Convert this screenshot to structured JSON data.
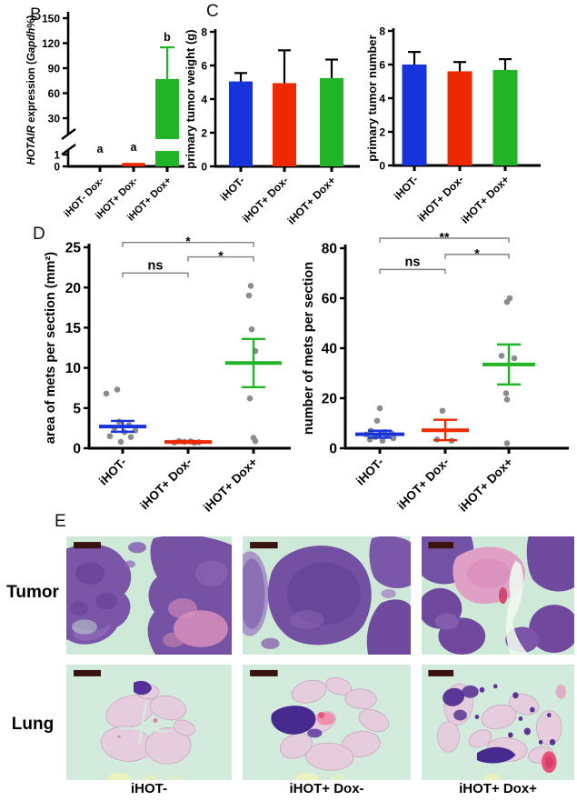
{
  "figure": {
    "panel_letters": {
      "b": "B",
      "c": "C",
      "d": "D",
      "e": "E"
    }
  },
  "colors": {
    "blue": "#1733db",
    "red": "#ee2800",
    "green": "#20b426",
    "dot_gray": "#8c8c8c",
    "bracket_gray": "#808080"
  },
  "panel_e": {
    "row_labels": [
      "Tumor",
      "Lung"
    ],
    "col_labels": [
      "iHOT-",
      "iHOT+ Dox-",
      "iHOT+ Dox+"
    ]
  },
  "chart_data": [
    {
      "id": "b",
      "type": "bar",
      "panel": "B",
      "ylabel": "HOTAIR expression (Gapdh%)",
      "ylabel_segments": [
        {
          "text": "HOTAIR",
          "italic": true
        },
        {
          "text": " expression (",
          "italic": false
        },
        {
          "text": "Gapdh",
          "italic": true
        },
        {
          "text": "%)",
          "italic": false
        }
      ],
      "broken_axis": true,
      "y_ticks_lower": [
        0,
        1
      ],
      "y_ticks_upper": [
        30,
        60,
        90,
        120,
        150
      ],
      "ylim_lower": [
        0,
        1
      ],
      "ylim_upper": [
        30,
        150
      ],
      "categories": [
        "iHOT- Dox-",
        "iHOT+ Dox-",
        "iHOT+ Dox+"
      ],
      "values": [
        0,
        0.3,
        77
      ],
      "error_top": [
        null,
        null,
        115
      ],
      "sig_letters": [
        "a",
        "a",
        "b"
      ],
      "bar_colors": [
        "blue",
        "red",
        "green"
      ]
    },
    {
      "id": "c1",
      "type": "bar",
      "panel": "C",
      "ylabel": "primary tumor weight  (g)",
      "y_ticks": [
        0,
        2,
        4,
        6,
        8
      ],
      "ylim": [
        0,
        8
      ],
      "categories": [
        "iHOT-",
        "iHOT+ Dox-",
        "iHOT+ Dox+"
      ],
      "values": [
        5.05,
        4.95,
        5.25
      ],
      "error_top": [
        5.55,
        6.9,
        6.35
      ],
      "bar_colors": [
        "blue",
        "red",
        "green"
      ]
    },
    {
      "id": "c2",
      "type": "bar",
      "panel": "C",
      "ylabel": "primary tumor number",
      "y_ticks": [
        0,
        2,
        4,
        6,
        8
      ],
      "ylim": [
        0,
        8
      ],
      "categories": [
        "iHOT-",
        "iHOT+ Dox-",
        "iHOT+ Dox+"
      ],
      "values": [
        6.0,
        5.6,
        5.68
      ],
      "error_top": [
        6.75,
        6.15,
        6.32
      ],
      "bar_colors": [
        "blue",
        "red",
        "green"
      ]
    },
    {
      "id": "d1",
      "type": "scatter",
      "panel": "D",
      "ylabel": "area of mets per section (mm²)",
      "y_ticks": [
        0,
        5,
        10,
        15,
        20,
        25
      ],
      "ylim": [
        0,
        25
      ],
      "categories": [
        "iHOT-",
        "iHOT+ Dox-",
        "iHOT+ Dox+"
      ],
      "group_colors": [
        "blue",
        "red",
        "green"
      ],
      "groups": [
        {
          "mean": 2.7,
          "sem_low": 2.05,
          "sem_high": 3.4,
          "points": [
            [
              6.8,
              -18
            ],
            [
              7.3,
              -6
            ],
            [
              3.3,
              -4
            ],
            [
              2.9,
              7
            ],
            [
              2.5,
              -9
            ],
            [
              2.2,
              14
            ],
            [
              1.5,
              -14
            ],
            [
              1.4,
              9
            ],
            [
              0.8,
              -2
            ],
            [
              2.0,
              2
            ]
          ]
        },
        {
          "mean": 0.78,
          "sem_low": 0.66,
          "sem_high": 0.9,
          "points": [
            [
              0.9,
              -10
            ],
            [
              0.85,
              3
            ],
            [
              0.8,
              -4
            ],
            [
              0.75,
              12
            ],
            [
              0.7,
              -15
            ],
            [
              0.68,
              7
            ]
          ]
        },
        {
          "mean": 10.6,
          "sem_low": 7.6,
          "sem_high": 13.6,
          "points": [
            [
              20.2,
              -3
            ],
            [
              19.0,
              -5
            ],
            [
              14.8,
              -2
            ],
            [
              12.1,
              2
            ],
            [
              6.2,
              -4
            ],
            [
              1.3,
              0
            ],
            [
              0.9,
              2
            ]
          ]
        }
      ],
      "brackets": [
        {
          "from": 0,
          "to": 2,
          "label": "*",
          "y": 25.6
        },
        {
          "from": 1,
          "to": 2,
          "label": "*",
          "y": 23.8
        },
        {
          "from": 0,
          "to": 1,
          "label": "ns",
          "y": 21.8
        }
      ]
    },
    {
      "id": "d2",
      "type": "scatter",
      "panel": "D",
      "ylabel": "number of mets per section",
      "y_ticks": [
        0,
        20,
        40,
        60,
        80
      ],
      "ylim": [
        0,
        80
      ],
      "categories": [
        "iHOT-",
        "iHOT+ Dox-",
        "iHOT+ Dox+"
      ],
      "group_colors": [
        "blue",
        "red",
        "green"
      ],
      "groups": [
        {
          "mean": 5.6,
          "sem_low": 4.2,
          "sem_high": 7.0,
          "points": [
            [
              16,
              0
            ],
            [
              11,
              -3
            ],
            [
              7,
              -10
            ],
            [
              6.5,
              5
            ],
            [
              6,
              13
            ],
            [
              5.5,
              -15
            ],
            [
              5,
              8
            ],
            [
              4.5,
              -5
            ],
            [
              4,
              15
            ],
            [
              3.5,
              -11
            ],
            [
              3,
              3
            ]
          ]
        },
        {
          "mean": 7.2,
          "sem_low": 3.2,
          "sem_high": 11.4,
          "points": [
            [
              15,
              -3
            ],
            [
              3.5,
              -9
            ],
            [
              3,
              7
            ]
          ]
        },
        {
          "mean": 33.5,
          "sem_low": 25.5,
          "sem_high": 41.5,
          "points": [
            [
              60,
              1
            ],
            [
              58.5,
              -2
            ],
            [
              37,
              -8
            ],
            [
              36,
              6
            ],
            [
              22,
              -3
            ],
            [
              19.5,
              -2
            ],
            [
              2,
              -2
            ]
          ]
        }
      ],
      "brackets": [
        {
          "from": 0,
          "to": 2,
          "label": "**",
          "y": 84
        },
        {
          "from": 1,
          "to": 2,
          "label": "*",
          "y": 77.5
        },
        {
          "from": 0,
          "to": 1,
          "label": "ns",
          "y": 71.5
        }
      ]
    }
  ]
}
